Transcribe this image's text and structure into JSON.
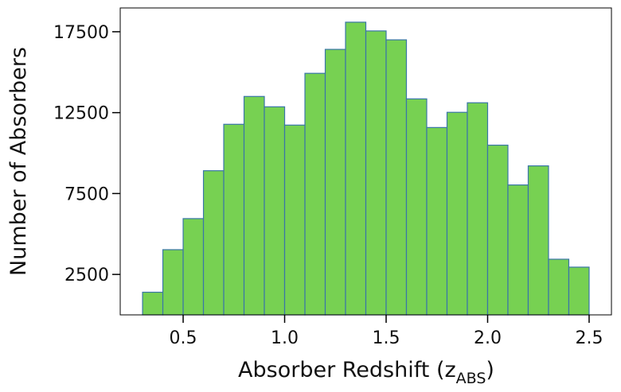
{
  "chart_data": {
    "type": "histogram",
    "xlabel": [
      "Absorber Redshift (z",
      "ABS",
      ")"
    ],
    "ylabel": "Number of Absorbers",
    "bins": [
      0.3,
      0.4,
      0.5,
      0.6,
      0.7,
      0.8,
      0.9,
      1.0,
      1.1,
      1.2,
      1.3,
      1.4,
      1.5,
      1.6,
      1.7,
      1.8,
      1.9,
      2.0,
      2.1,
      2.2,
      2.3,
      2.4,
      2.5
    ],
    "values": [
      1400,
      4030,
      5950,
      8910,
      11780,
      13500,
      12860,
      11730,
      14930,
      16410,
      18090,
      17550,
      17000,
      13350,
      11580,
      12520,
      13110,
      10490,
      8030,
      9210,
      3440,
      2950
    ],
    "color": "#77d152",
    "edgecolor": "#3a76a8",
    "xlim": [
      0.19,
      2.61
    ],
    "ylim": [
      0,
      18970
    ],
    "xticks": [
      {
        "value": 0.5,
        "label": "0.5"
      },
      {
        "value": 1.0,
        "label": "1.0"
      },
      {
        "value": 1.5,
        "label": "1.5"
      },
      {
        "value": 2.0,
        "label": "2.0"
      },
      {
        "value": 2.5,
        "label": "2.5"
      }
    ],
    "yticks": [
      2500,
      7500,
      12500,
      17500
    ]
  }
}
